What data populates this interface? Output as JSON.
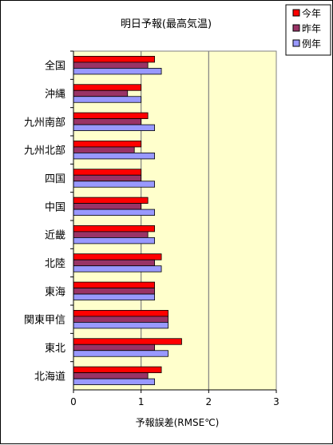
{
  "chart_data": {
    "type": "bar",
    "orientation": "horizontal",
    "title": "明日予報(最高気温)",
    "xlabel": "予報誤差(RMSE℃)",
    "ylabel": "",
    "xlim": [
      0,
      3
    ],
    "xticks": [
      "0",
      "1",
      "2",
      "3"
    ],
    "grid": "vertical major lines",
    "legend_position": "top-right",
    "plot_background": "#ffffcc",
    "categories": [
      "全国",
      "沖縄",
      "九州南部",
      "九州北部",
      "四国",
      "中国",
      "近畿",
      "北陸",
      "東海",
      "関東甲信",
      "東北",
      "北海道"
    ],
    "series": [
      {
        "name": "今年",
        "color": "#ff0000",
        "values": [
          1.2,
          1.0,
          1.1,
          1.0,
          1.0,
          1.1,
          1.2,
          1.3,
          1.2,
          1.4,
          1.6,
          1.3
        ]
      },
      {
        "name": "昨年",
        "color": "#993366",
        "values": [
          1.1,
          0.8,
          1.0,
          0.9,
          1.0,
          1.0,
          1.1,
          1.2,
          1.2,
          1.4,
          1.2,
          1.1
        ]
      },
      {
        "name": "例年",
        "color": "#9999ff",
        "values": [
          1.3,
          1.0,
          1.2,
          1.2,
          1.2,
          1.2,
          1.2,
          1.3,
          1.2,
          1.4,
          1.4,
          1.2
        ]
      }
    ]
  }
}
